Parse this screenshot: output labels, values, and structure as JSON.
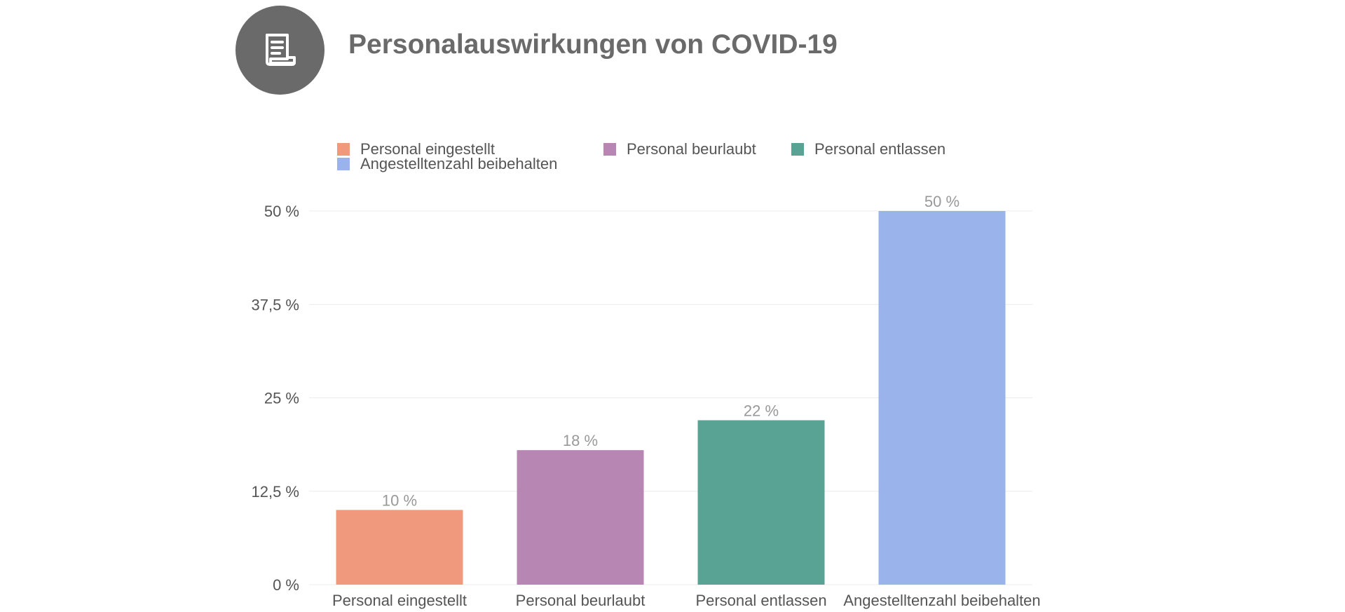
{
  "header": {
    "icon": "document-icon",
    "title": "Personalauswirkungen von COVID-19"
  },
  "chart_data": {
    "type": "bar",
    "title": "Personalauswirkungen von COVID-19",
    "categories": [
      "Personal eingestellt",
      "Personal beurlaubt",
      "Personal entlassen",
      "Angestelltenzahl beibehalten"
    ],
    "values": [
      10,
      18,
      22,
      50
    ],
    "value_labels": [
      "10 %",
      "18 %",
      "22 %",
      "50 %"
    ],
    "colors": [
      "#f0997d",
      "#b786b3",
      "#58a394",
      "#9ab3ea"
    ],
    "legend": [
      "Personal eingestellt",
      "Personal beurlaubt",
      "Personal entlassen",
      "Angestelltenzahl beibehalten"
    ],
    "legend_position": "top",
    "y_ticks": [
      0,
      12.5,
      25,
      37.5,
      50
    ],
    "y_tick_labels": [
      "0 %",
      "12,5 %",
      "25 %",
      "37,5 %",
      "50 %"
    ],
    "ylim": [
      0,
      50
    ],
    "xlabel": "",
    "ylabel": "",
    "grid": true
  }
}
